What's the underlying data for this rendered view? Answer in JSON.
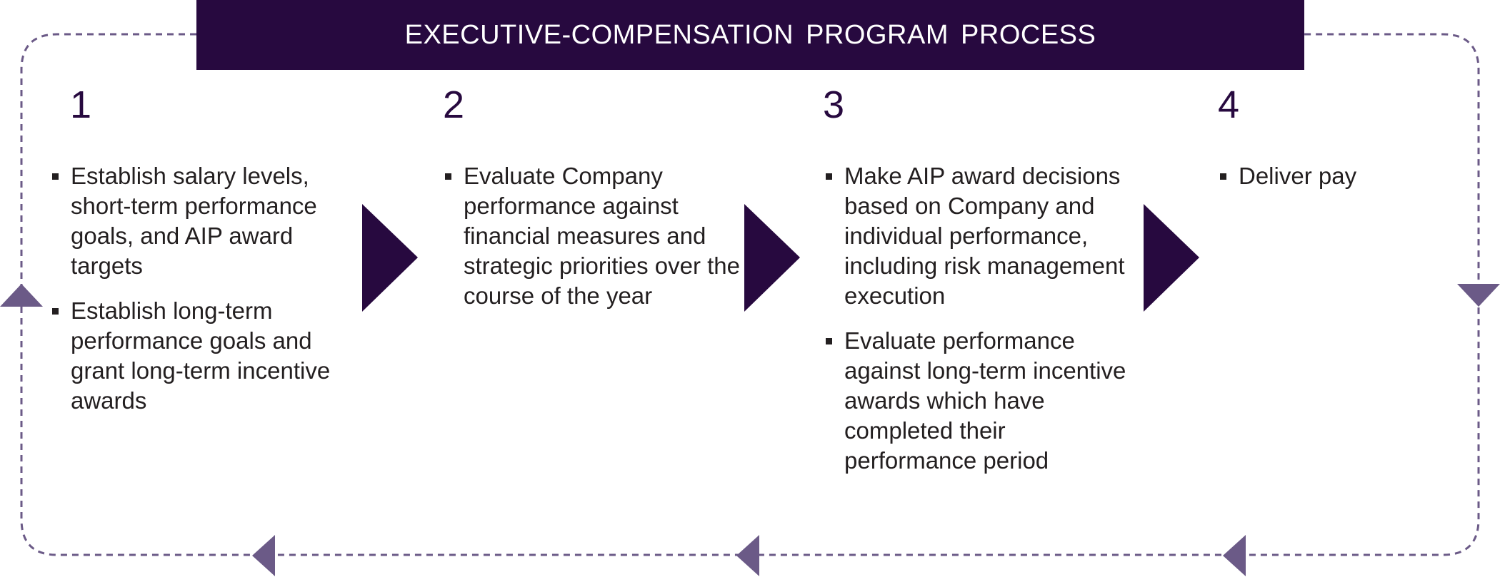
{
  "title": "EXECUTIVE-COMPENSATION  PROGRAM  PROCESS",
  "colors": {
    "title_bg": "#27093f",
    "step_arrow": "#27093f",
    "loop_line": "#6b5a87",
    "loop_arrow": "#6b5a87",
    "text": "#231f20"
  },
  "steps": [
    {
      "number": "1",
      "items": [
        "Establish salary levels, short-term performance goals, and AIP award targets",
        "Establish long-term performance goals and grant long-term incentive awards"
      ]
    },
    {
      "number": "2",
      "items": [
        "Evaluate Company performance against financial measures and strategic priorities over the course of the year"
      ]
    },
    {
      "number": "3",
      "items": [
        "Make AIP award decisions based on Company and individual performance, including risk management execution",
        "Evaluate performance against long-term incentive awards which have completed their performance period"
      ]
    },
    {
      "number": "4",
      "items": [
        "Deliver pay"
      ]
    }
  ]
}
